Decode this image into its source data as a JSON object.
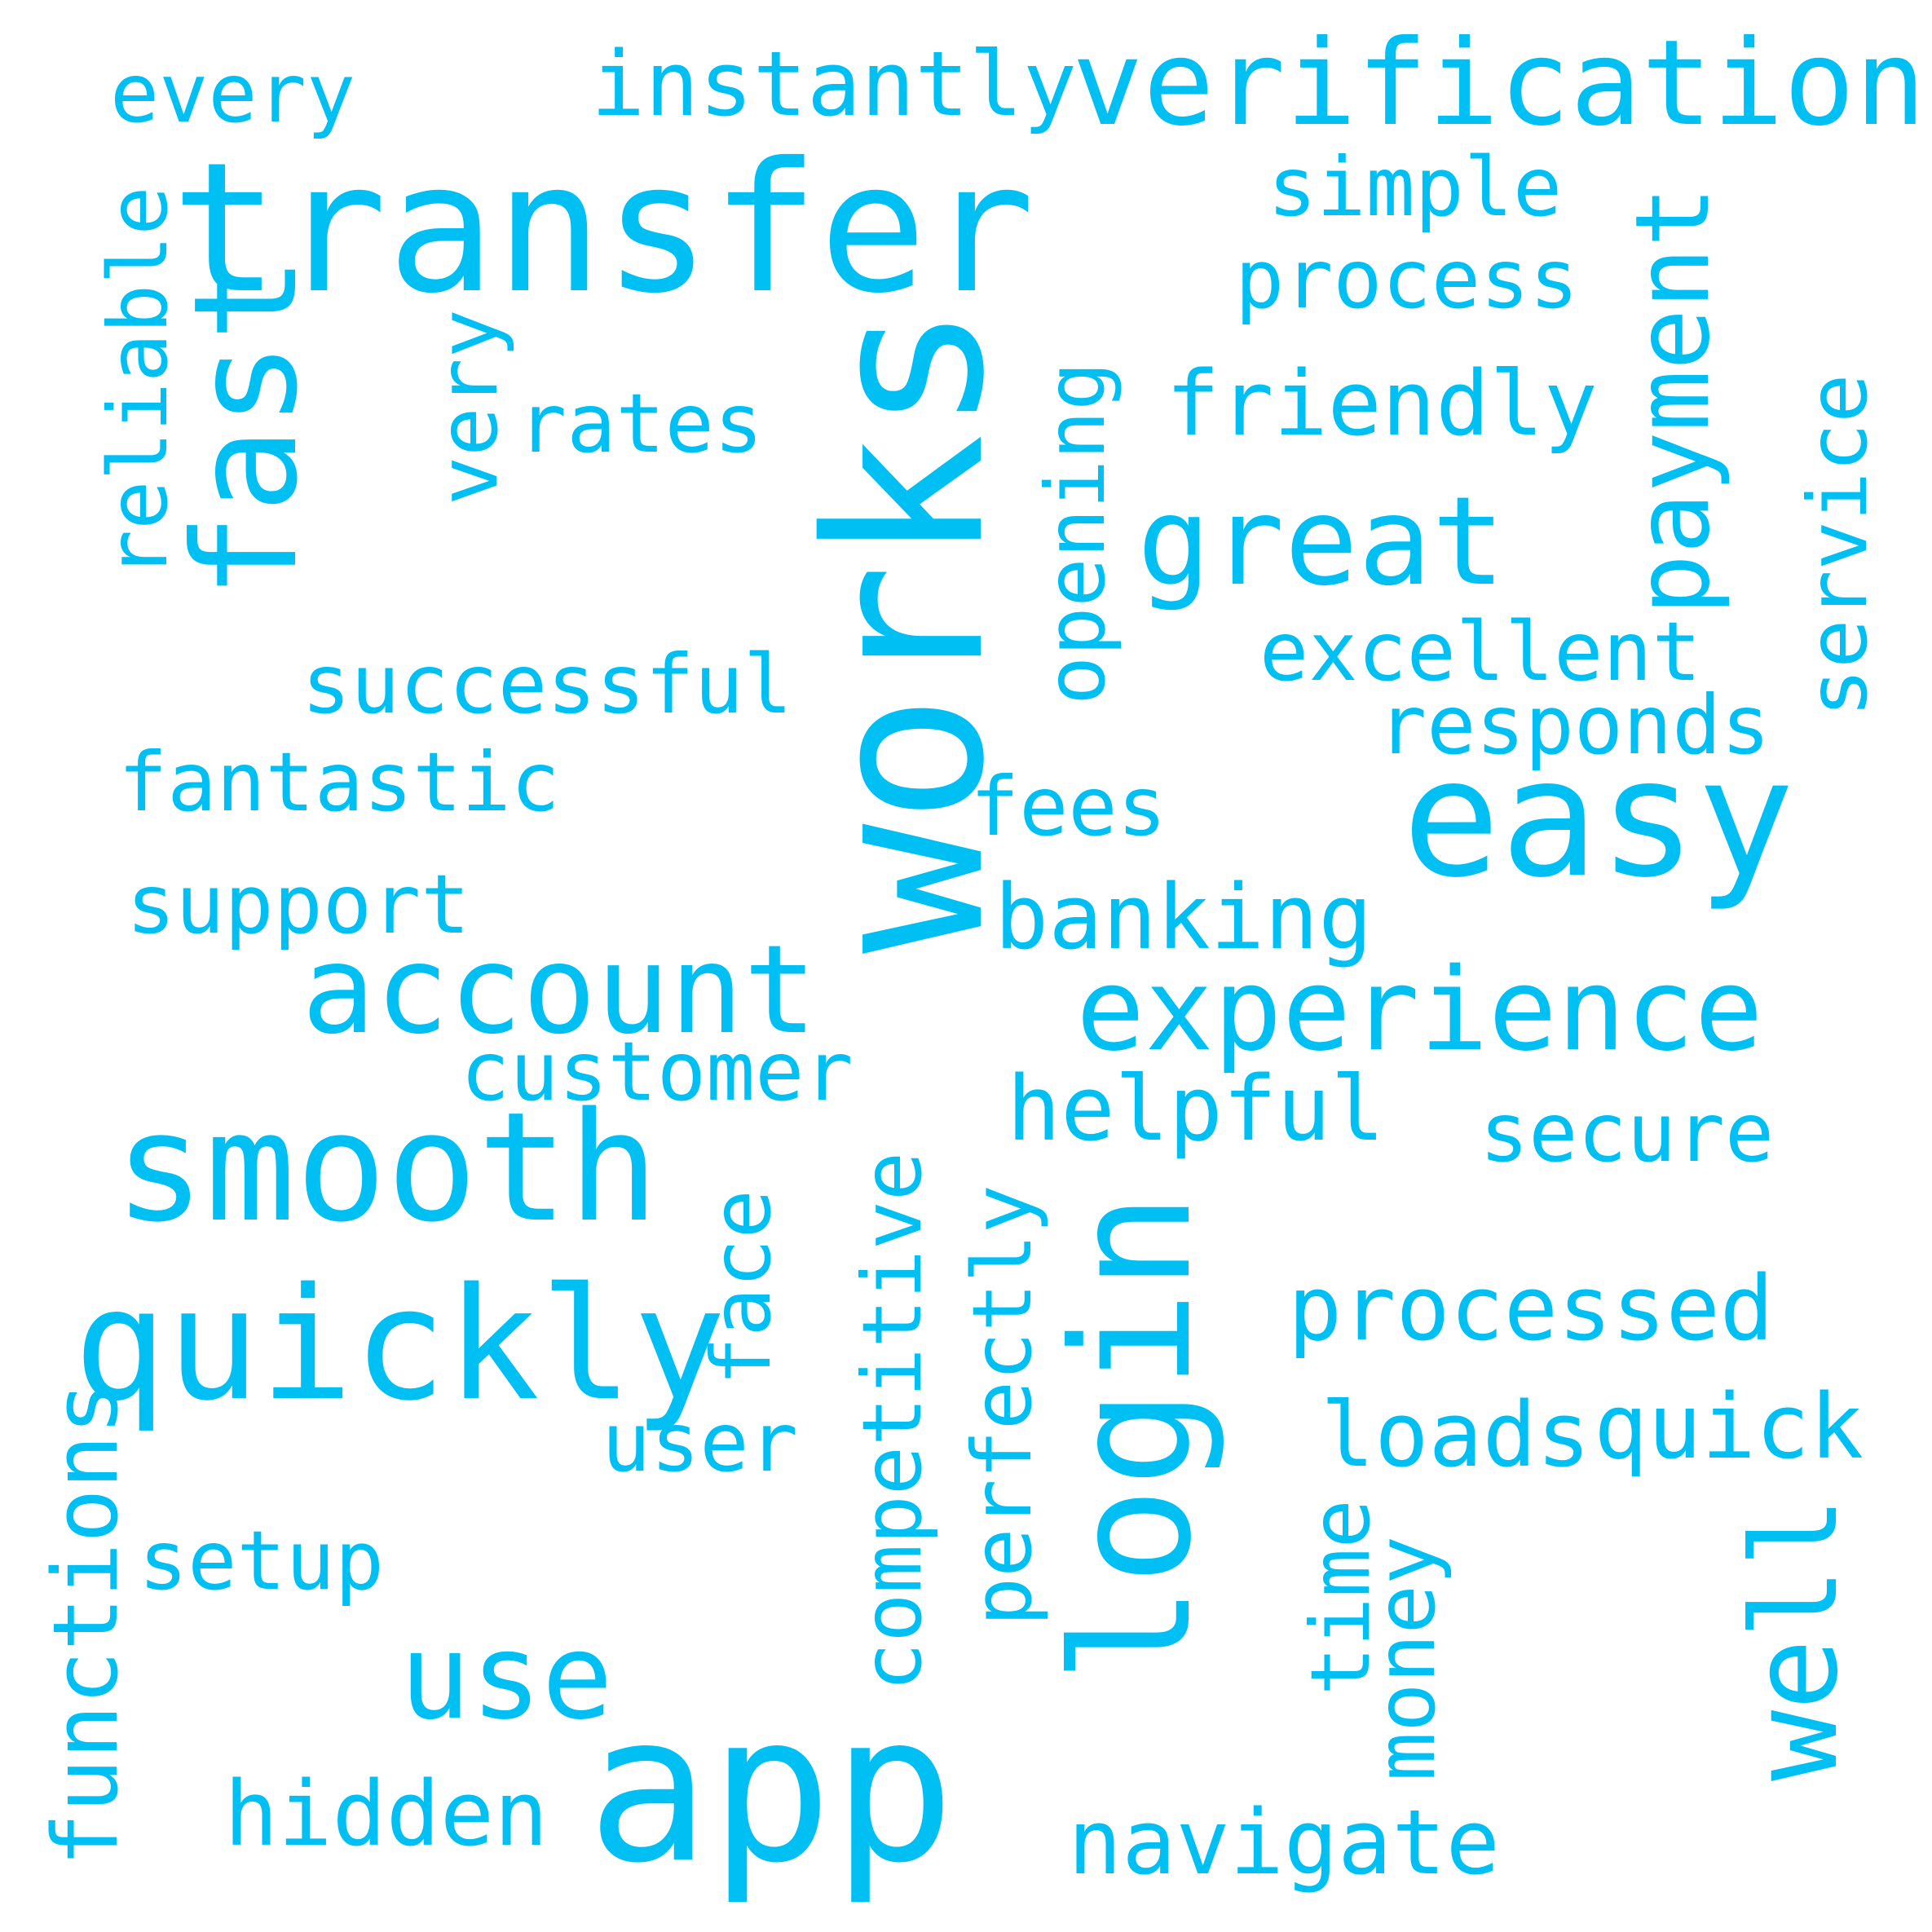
{
  "color": "#00bff2",
  "words": {
    "works": "works",
    "app": "app",
    "transfer": "transfer",
    "verification": "verification",
    "easy": "easy",
    "login": "login",
    "quickly": "quickly",
    "smooth": "smooth",
    "fast": "fast",
    "payment": "payment",
    "experience": "experience",
    "account": "account",
    "great": "great",
    "well": "well",
    "use": "use",
    "instantly": "instantly",
    "every": "every",
    "simple": "simple",
    "process": "process",
    "reliable": "reliable",
    "very": "very",
    "rates": "rates",
    "opening": "opening",
    "friendly": "friendly",
    "service": "service",
    "excellent": "excellent",
    "successful": "successful",
    "responds": "responds",
    "fantastic": "fantastic",
    "fees": "fees",
    "support": "support",
    "banking": "banking",
    "customer": "customer",
    "helpful": "helpful",
    "secure": "secure",
    "face": "face",
    "competitive": "competitive",
    "perfectly": "perfectly",
    "processed": "processed",
    "user": "user",
    "loads": "loads",
    "quick": "quick",
    "functions": "functions",
    "setup": "setup",
    "time": "time",
    "money": "money",
    "hidden": "hidden",
    "navigate": "navigate"
  }
}
